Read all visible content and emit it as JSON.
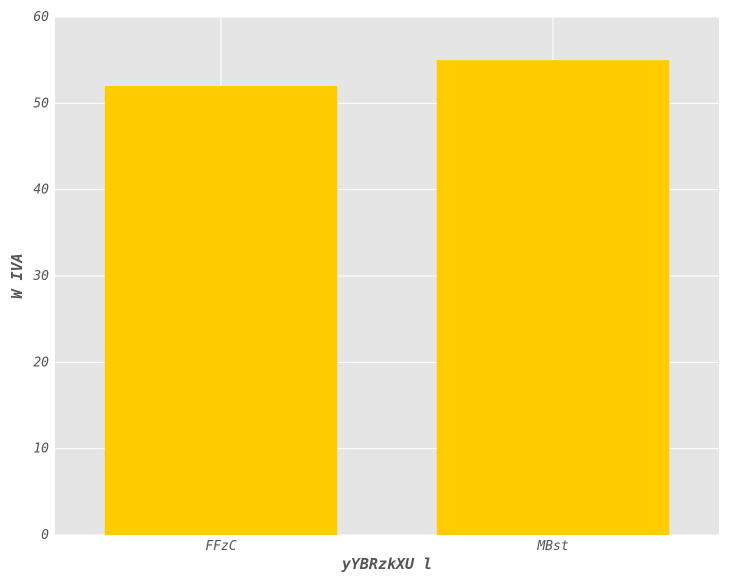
{
  "chart_data": {
    "type": "bar",
    "title": "",
    "xlabel": "yYBRzkXU l",
    "ylabel": "W IVA",
    "categories": [
      "FFzC",
      "MBst"
    ],
    "values": [
      52,
      55
    ],
    "ylim": [
      0,
      60
    ],
    "yticks": [
      0,
      10,
      20,
      30,
      40,
      50,
      60
    ],
    "grid": true,
    "legend": "none",
    "colors": {
      "bar": "#ffcc00",
      "plot_background": "#e5e5e5",
      "grid": "#ffffff",
      "text": "#555555"
    }
  }
}
